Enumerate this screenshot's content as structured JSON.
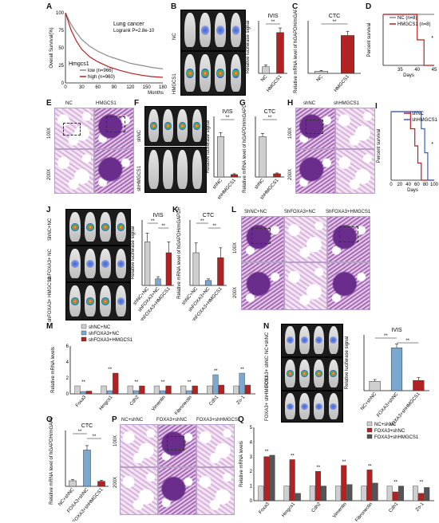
{
  "panels": {
    "A": {
      "letter": "A",
      "title": "Lung cancer",
      "subtitle": "Logrank P=2.8e-10",
      "gene": "Hmgcs1",
      "ylabel": "Overall Survival(%)",
      "xlabel": "Months"
    },
    "B": {
      "letter": "B",
      "row_labels": [
        "NC",
        "HMGCS1"
      ]
    },
    "C": {
      "letter": "C"
    },
    "D": {
      "letter": "D"
    },
    "E": {
      "letter": "E",
      "col_labels": [
        "NC",
        "HMGCS1"
      ],
      "row_labels": [
        "100X",
        "200X"
      ]
    },
    "F": {
      "letter": "F",
      "row_labels": [
        "shNC",
        "shHMGCS1"
      ]
    },
    "G": {
      "letter": "G"
    },
    "H": {
      "letter": "H",
      "col_labels": [
        "shNC",
        "shHMGCS1"
      ],
      "row_labels": [
        "100X",
        "200X"
      ]
    },
    "I": {
      "letter": "I"
    },
    "J": {
      "letter": "J",
      "row_labels": [
        "ShNC+NC",
        "shFOXA3+ NC",
        "shFOXA3+ HMGCS1"
      ]
    },
    "K": {
      "letter": "K"
    },
    "L": {
      "letter": "L",
      "col_labels": [
        "ShNC+NC",
        "ShFOXA3+NC",
        "ShFOXA3+HMGCS1"
      ],
      "row_labels": [
        "100X",
        "200X"
      ]
    },
    "M": {
      "letter": "M"
    },
    "N": {
      "letter": "N",
      "row_labels": [
        "NC+shNC",
        "FOXA3+ shNC",
        "FOXA3+ shHMGCS1"
      ]
    },
    "O": {
      "letter": "O"
    },
    "P": {
      "letter": "P",
      "col_labels": [
        "NC+shNC",
        "FOXA3+shNC",
        "FOXA3+shHMGCS1"
      ],
      "row_labels": [
        "100X",
        "200X"
      ]
    },
    "Q": {
      "letter": "Q"
    }
  },
  "colors": {
    "gray": "#8c8c8c",
    "red": "#b22222",
    "blue": "#7aa8cf",
    "lightgray": "#cfcfcf",
    "black": "#111111"
  },
  "chart_data": [
    {
      "id": "A",
      "type": "line",
      "title": "Lung cancer",
      "subtitle": "Logrank P=2.8e-10",
      "xlabel": "Months",
      "ylabel": "Overall Survival(%)",
      "xlim": [
        0,
        180
      ],
      "ylim": [
        0,
        100
      ],
      "xticks": [
        "0",
        "30",
        "60",
        "90",
        "120",
        "150",
        "180"
      ],
      "yticks": [
        "0",
        "25",
        "50",
        "75",
        "100"
      ],
      "legend": "bottom-left",
      "series": [
        {
          "name": "low (n=966)",
          "color": "#8c8c8c",
          "x": [
            0,
            10,
            20,
            30,
            45,
            60,
            80,
            100,
            120,
            140,
            160,
            180
          ],
          "y": [
            100,
            84,
            72,
            62,
            52,
            45,
            38,
            33,
            28,
            25,
            22,
            20
          ]
        },
        {
          "name": "high (n=960)",
          "color": "#b22222",
          "x": [
            0,
            10,
            20,
            30,
            45,
            60,
            80,
            100,
            120,
            140,
            160,
            180
          ],
          "y": [
            100,
            76,
            60,
            48,
            37,
            30,
            23,
            18,
            14,
            11,
            9,
            8
          ]
        }
      ]
    },
    {
      "id": "B",
      "type": "bar",
      "title": "IVIS",
      "ylabel": "Relative luciferase signal",
      "categories": [
        "NC",
        "HMGCS1"
      ],
      "values": [
        1.0,
        6.2
      ],
      "errors": [
        0.3,
        0.7
      ],
      "ylim": [
        0,
        8
      ],
      "sig": [
        {
          "a": 0,
          "b": 1,
          "label": "**"
        }
      ]
    },
    {
      "id": "C",
      "type": "bar",
      "title": "CTC",
      "ylabel": "Relative mRNA level of hGAPDH/mGAPDH",
      "categories": [
        "NC",
        "HMGCS1"
      ],
      "values": [
        1.0,
        18.0
      ],
      "errors": [
        0.4,
        2.0
      ],
      "ylim": [
        0,
        25
      ],
      "sig": [
        {
          "a": 0,
          "b": 1,
          "label": "**"
        }
      ]
    },
    {
      "id": "D",
      "type": "line",
      "step": true,
      "ylabel": "Percent survival",
      "xlabel": "Days",
      "xlim": [
        30,
        45
      ],
      "ylim": [
        0,
        100
      ],
      "xticks": [
        "35",
        "40",
        "45"
      ],
      "legend": "top-right",
      "annotation": "*",
      "series": [
        {
          "name": "NC (n=8)",
          "color": "#8c8c8c",
          "x": [
            30,
            45
          ],
          "y": [
            100,
            100
          ]
        },
        {
          "name": "HMGCS1 (n=8)",
          "color": "#b22222",
          "x": [
            30,
            40,
            40,
            42,
            42,
            45
          ],
          "y": [
            100,
            100,
            50,
            50,
            0,
            0
          ]
        }
      ]
    },
    {
      "id": "F",
      "type": "bar",
      "title": "IVIS",
      "ylabel": "Relative luciferase signal",
      "categories": [
        "shNC",
        "shHMGCS1"
      ],
      "values": [
        1.0,
        0.06
      ],
      "errors": [
        0.1,
        0.02
      ],
      "ylim": [
        0,
        1.5
      ],
      "sig": [
        {
          "a": 0,
          "b": 1,
          "label": "**"
        }
      ]
    },
    {
      "id": "G",
      "type": "bar",
      "title": "CTC",
      "ylabel": "Relative mRNA level of hGAPDH/mGAPDH",
      "categories": [
        "shNC",
        "shHMGCS1"
      ],
      "values": [
        1.0,
        0.08
      ],
      "errors": [
        0.08,
        0.02
      ],
      "ylim": [
        0,
        1.5
      ],
      "sig": [
        {
          "a": 0,
          "b": 1,
          "label": "**"
        }
      ]
    },
    {
      "id": "I",
      "type": "line",
      "step": true,
      "ylabel": "Percent survival",
      "xlabel": "Days",
      "xlim": [
        0,
        100
      ],
      "ylim": [
        0,
        100
      ],
      "xticks": [
        "0",
        "20",
        "40",
        "60",
        "80",
        "100"
      ],
      "legend": "top-right",
      "annotation": "*",
      "series": [
        {
          "name": "shNC",
          "color": "#b22222",
          "x": [
            0,
            45,
            45,
            55,
            55,
            62,
            62,
            70,
            70,
            100
          ],
          "y": [
            100,
            100,
            75,
            75,
            50,
            50,
            25,
            25,
            0,
            0
          ]
        },
        {
          "name": "shHMGCS1",
          "color": "#3b5bd6",
          "x": [
            0,
            70,
            70,
            78,
            78,
            85,
            85,
            100
          ],
          "y": [
            100,
            100,
            75,
            75,
            40,
            40,
            0,
            0
          ]
        }
      ]
    },
    {
      "id": "J",
      "type": "bar",
      "title": "IVIS",
      "ylabel": "Relative luciferase signal",
      "categories": [
        "shNC+NC",
        "shFOXA3+NC",
        "shFOXA3+HMGCS1"
      ],
      "values": [
        1.0,
        0.15,
        0.75
      ],
      "errors": [
        0.2,
        0.05,
        0.25
      ],
      "ylim": [
        0,
        1.5
      ],
      "sig": [
        {
          "a": 0,
          "b": 1,
          "label": "**"
        },
        {
          "a": 1,
          "b": 2,
          "label": "**"
        }
      ]
    },
    {
      "id": "K",
      "type": "bar",
      "title": "CTC",
      "ylabel": "Relative mRNA level of hGAPDH/mGAPDH",
      "categories": [
        "shNC+NC",
        "shFOXA3+NC",
        "shFOXA3+HMGCS1"
      ],
      "values": [
        1.0,
        0.15,
        0.85
      ],
      "errors": [
        0.3,
        0.05,
        0.3
      ],
      "ylim": [
        0,
        2.0
      ],
      "sig": [
        {
          "a": 0,
          "b": 1,
          "label": "**"
        },
        {
          "a": 1,
          "b": 2,
          "label": "**"
        }
      ]
    },
    {
      "id": "M",
      "type": "bar",
      "ylabel": "Relative mRNA levels",
      "ylim": [
        0,
        6
      ],
      "yticks": [
        "0",
        "2",
        "4",
        "6"
      ],
      "legend": "top-left",
      "categories": [
        "Foxa3",
        "Hmgcs1",
        "Cdh2",
        "Vimentin",
        "Fibronectin",
        "Cdh1",
        "Zo-1"
      ],
      "series": [
        {
          "name": "shNC+NC",
          "color": "#cfcfcf",
          "values": [
            1.0,
            1.0,
            1.0,
            1.0,
            1.0,
            1.0,
            1.0
          ]
        },
        {
          "name": "shFOXA3+NC",
          "color": "#7aa8cf",
          "values": [
            0.3,
            0.4,
            0.4,
            0.4,
            0.4,
            2.4,
            2.6
          ]
        },
        {
          "name": "shFOXA3+HMGCS1",
          "color": "#b22222",
          "values": [
            0.35,
            2.6,
            1.0,
            1.0,
            1.0,
            1.1,
            1.1
          ]
        }
      ],
      "sig_label": "**"
    },
    {
      "id": "N",
      "type": "bar",
      "title": "IVIS",
      "ylabel": "Relative luciferase signal",
      "categories": [
        "NC+shNC",
        "FOXA3+shNC",
        "FOXA3+shHMGCS1"
      ],
      "values": [
        1.0,
        4.6,
        1.1
      ],
      "errors": [
        0.2,
        0.4,
        0.3
      ],
      "ylim": [
        0,
        6
      ],
      "sig": [
        {
          "a": 0,
          "b": 1,
          "label": "**"
        },
        {
          "a": 1,
          "b": 2,
          "label": "**"
        }
      ]
    },
    {
      "id": "O",
      "type": "bar",
      "title": "CTC",
      "ylabel": "Relative mRNA level of hGAPDH/mGAPDH",
      "categories": [
        "NC+shNC",
        "FOXA3+shNC",
        "FOXA3+shHMGCS1"
      ],
      "values": [
        1.0,
        6.5,
        0.9
      ],
      "errors": [
        0.2,
        0.8,
        0.2
      ],
      "ylim": [
        0,
        10
      ],
      "sig": [
        {
          "a": 0,
          "b": 1,
          "label": "**"
        },
        {
          "a": 1,
          "b": 2,
          "label": "**"
        }
      ]
    },
    {
      "id": "Q",
      "type": "bar",
      "ylabel": "Relative mRNA levels",
      "ylim": [
        0,
        5
      ],
      "yticks": [
        "0",
        "1",
        "2",
        "3",
        "4",
        "5"
      ],
      "legend": "top-right",
      "categories": [
        "Foxa3",
        "Hmgcs1",
        "Cdh2",
        "Vimentin",
        "Fibronectin",
        "Cdh1",
        "Zo-1"
      ],
      "series": [
        {
          "name": "NC+shNC",
          "color": "#cfcfcf",
          "values": [
            1.0,
            1.0,
            1.0,
            1.0,
            1.0,
            1.0,
            1.0
          ]
        },
        {
          "name": "FOXA3+shNC",
          "color": "#b22222",
          "values": [
            3.0,
            2.8,
            2.0,
            2.4,
            2.1,
            0.6,
            0.5
          ]
        },
        {
          "name": "FOXA3+shHMGCS1",
          "color": "#555555",
          "values": [
            3.1,
            0.5,
            1.0,
            1.1,
            1.2,
            1.0,
            0.9
          ]
        }
      ],
      "sig_label": "**"
    }
  ]
}
